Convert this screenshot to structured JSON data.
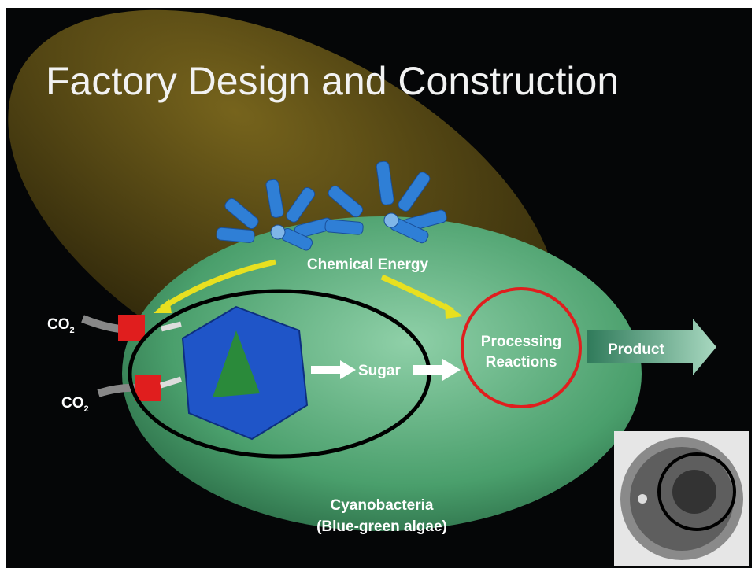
{
  "title": "Factory Design and Construction",
  "labels": {
    "chemical_energy": "Chemical Energy",
    "co2_top": {
      "main": "CO",
      "sub": "2"
    },
    "co2_bottom": {
      "main": "CO",
      "sub": "2"
    },
    "sugar": "Sugar",
    "processing": [
      "Processing",
      "Reactions"
    ],
    "product": "Product",
    "organism": [
      "Cyanobacteria",
      "(Blue-green algae)"
    ]
  }
}
